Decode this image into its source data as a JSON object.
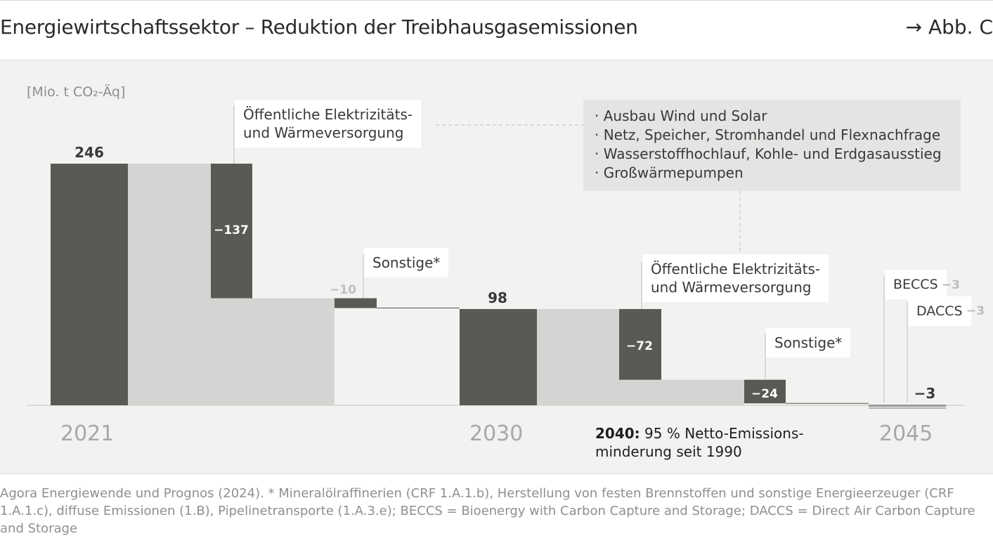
{
  "header": {
    "title": "Energiewirtschaftssektor – Reduktion der Treibhausgasemissionen",
    "figure_ref": "→ Abb. C"
  },
  "unit_label": "[Mio. t CO₂-Äq]",
  "colors": {
    "dark": "#5b5955",
    "light": "#d4d4d2",
    "panel": "#f2f2f1"
  },
  "chart_data": {
    "type": "waterfall",
    "unit": "Mio. t CO₂-Äq",
    "ylim": [
      0,
      246
    ],
    "steps": [
      {
        "kind": "total",
        "year_label": "2021",
        "value": 246,
        "label": "246"
      },
      {
        "kind": "delta",
        "name": "Öffentliche Elektrizitäts- und Wärmeversorgung",
        "value": -137,
        "label": "−137"
      },
      {
        "kind": "delta",
        "name": "Sonstige*",
        "value": -10,
        "label": "−10"
      },
      {
        "kind": "total",
        "year_label": "2030",
        "value": 98,
        "label": "98"
      },
      {
        "kind": "delta",
        "name": "Öffentliche Elektrizitäts- und Wärmeversorgung",
        "value": -72,
        "label": "−72"
      },
      {
        "kind": "delta",
        "name": "Sonstige*",
        "value": -24,
        "label": "−24"
      },
      {
        "kind": "total",
        "year_label": "2045",
        "value": -3,
        "label": "−3"
      }
    ],
    "removals_2045": [
      {
        "name": "BECCS",
        "value": -3,
        "label": "−3"
      },
      {
        "name": "DACCS",
        "value": -3,
        "label": "−3"
      }
    ],
    "callouts": {
      "public_supply": "Öffentliche Elektrizitäts-\nund Wärmeversorgung",
      "sonstige": "Sonstige*"
    },
    "measures": [
      "· Ausbau Wind und Solar",
      "· Netz, Speicher, Stromhandel und Flexnachfrage",
      "· Wasserstoffhochlauf, Kohle- und Erdgasausstieg",
      "· Großwärmepumpen"
    ],
    "note_2040": {
      "year": "2040:",
      "text_line1": " 95 % Netto-Emissions-",
      "text_line2": "minderung seit 1990"
    }
  },
  "footer": "Agora Energiewende und Prognos (2024). * Mineralölraffinerien (CRF 1.A.1.b), Herstellung von festen Brennstoffen und sonstige Energieerzeuger (CRF 1.A.1.c), diffuse Emissionen (1.B), Pipelinetransporte (1.A.3.e); BECCS = Bioenergy with Carbon Capture and Storage; DACCS = Direct Air Carbon Capture and Storage"
}
